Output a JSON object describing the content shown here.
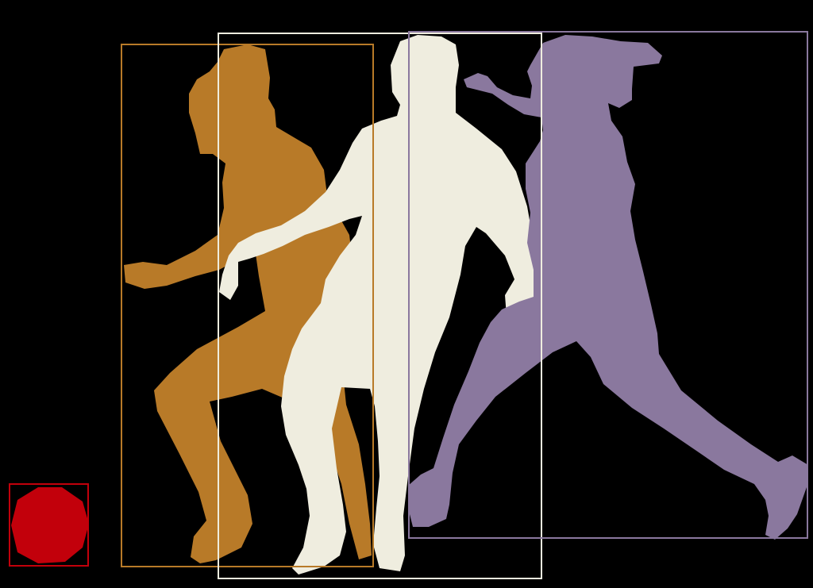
{
  "canvas": {
    "background": "#000000"
  },
  "objects": [
    {
      "category": "person",
      "color": "#B87A28"
    },
    {
      "category": "person",
      "color": "#EFEDDF"
    },
    {
      "category": "person",
      "color": "#8A789E"
    },
    {
      "category": "sports ball",
      "color": "#C2000B"
    }
  ]
}
